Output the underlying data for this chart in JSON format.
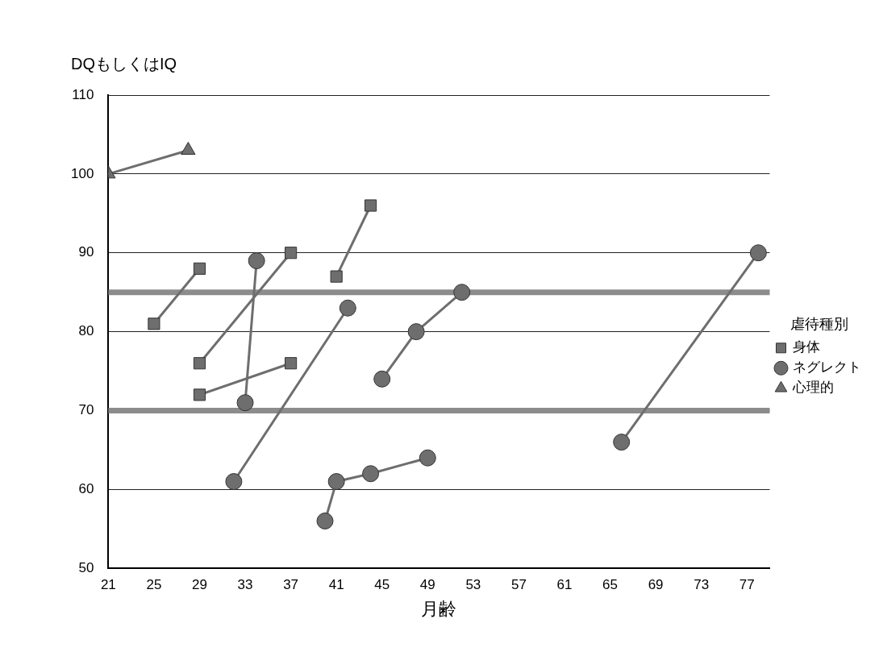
{
  "chart_data": {
    "type": "line",
    "ylabel": "DQもしくはIQ",
    "xlabel": "月齢",
    "legend_title": "虐待種別",
    "legend": "right",
    "grid": "y",
    "xlim": [
      21,
      79
    ],
    "xticks": [
      21,
      25,
      29,
      33,
      37,
      41,
      45,
      49,
      53,
      57,
      61,
      65,
      69,
      73,
      77
    ],
    "ylim": [
      50,
      110
    ],
    "yticks": [
      50,
      60,
      70,
      80,
      90,
      100,
      110
    ],
    "ref_lines": [
      {
        "axis": "y",
        "value": 85,
        "color": "#8c8c8c"
      },
      {
        "axis": "y",
        "value": 70,
        "color": "#8c8c8c"
      }
    ],
    "series": [
      {
        "name": "身体",
        "marker": "square",
        "color": "#6e6e6e",
        "x": [
          25,
          29
        ],
        "values": [
          81,
          88
        ]
      },
      {
        "marker": "square",
        "color": "#6e6e6e",
        "x": [
          29,
          37
        ],
        "values": [
          76,
          90
        ]
      },
      {
        "marker": "square",
        "color": "#6e6e6e",
        "x": [
          29,
          37
        ],
        "values": [
          72,
          76
        ]
      },
      {
        "marker": "square",
        "color": "#6e6e6e",
        "x": [
          41,
          44
        ],
        "values": [
          87,
          96
        ]
      },
      {
        "name": "ネグレクト",
        "marker": "circle",
        "color": "#6e6e6e",
        "x": [
          34,
          33
        ],
        "values": [
          89,
          71
        ]
      },
      {
        "marker": "circle",
        "color": "#6e6e6e",
        "x": [
          32,
          42
        ],
        "values": [
          61,
          83
        ]
      },
      {
        "marker": "circle",
        "color": "#6e6e6e",
        "x": [
          45,
          48,
          52
        ],
        "values": [
          74,
          80,
          85
        ]
      },
      {
        "marker": "circle",
        "color": "#6e6e6e",
        "x": [
          40,
          41,
          44,
          49
        ],
        "values": [
          56,
          61,
          62,
          64
        ]
      },
      {
        "marker": "circle",
        "color": "#6e6e6e",
        "x": [
          66,
          78
        ],
        "values": [
          66,
          90
        ]
      },
      {
        "name": "心理的",
        "marker": "triangle",
        "color": "#6e6e6e",
        "x": [
          21,
          28
        ],
        "values": [
          100,
          103
        ]
      }
    ]
  }
}
